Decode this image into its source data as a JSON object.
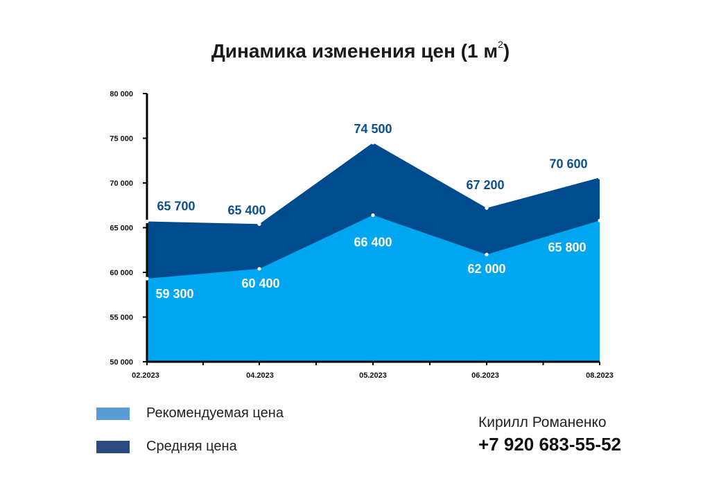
{
  "title": {
    "text": "Динамика изменения цен (1 м",
    "superscript": "2",
    "suffix": ")"
  },
  "chart_data": {
    "type": "area",
    "title": "Динамика изменения цен (1 м²)",
    "categories": [
      "02.2023",
      "04.2023",
      "05.2023",
      "06.2023",
      "08.2023"
    ],
    "series": [
      {
        "name": "Средняя цена",
        "values": [
          65700,
          65400,
          74500,
          67200,
          70600
        ],
        "labels": [
          "65 700",
          "65 400",
          "74 500",
          "67 200",
          "70 600"
        ],
        "color": "#004b8d",
        "label_color": "#0d4f8e"
      },
      {
        "name": "Рекомендуемая цена",
        "values": [
          59300,
          60400,
          66400,
          62000,
          65800
        ],
        "labels": [
          "59 300",
          "60 400",
          "66 400",
          "62 000",
          "65 800"
        ],
        "color": "#00a6f0",
        "label_color": "#ffffff"
      }
    ],
    "ylim": [
      50000,
      80000
    ],
    "yticks": [
      50000,
      55000,
      60000,
      65000,
      70000,
      75000,
      80000
    ],
    "ytick_labels": [
      "50 000",
      "55 000",
      "60 000",
      "65 000",
      "70 000",
      "75 000",
      "80 000"
    ],
    "grid": false,
    "legend_position": "bottom-left"
  },
  "legend": {
    "items": [
      {
        "label": "Рекомендуемая цена",
        "color": "#5b9bd5"
      },
      {
        "label": "Средняя цена",
        "color": "#2a4a80"
      }
    ]
  },
  "contact": {
    "name": "Кирилл Романенко",
    "phone": "+7 920 683-55-52"
  }
}
